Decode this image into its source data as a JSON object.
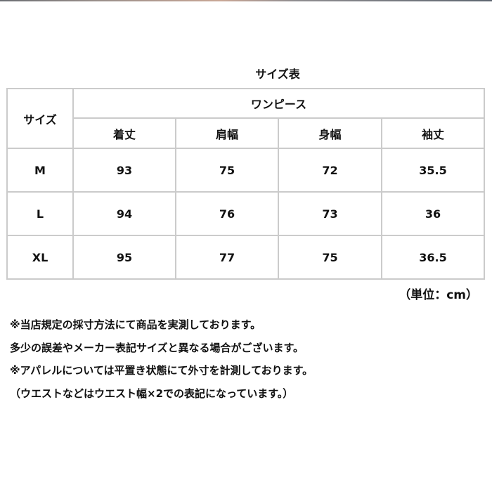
{
  "title": "サイズ表",
  "table": {
    "size_header": "サイズ",
    "group_header": "ワンピース",
    "columns": [
      "着丈",
      "肩幅",
      "身幅",
      "袖丈"
    ],
    "rows": [
      {
        "size": "M",
        "values": [
          "93",
          "75",
          "72",
          "35.5"
        ]
      },
      {
        "size": "L",
        "values": [
          "94",
          "76",
          "73",
          "36"
        ]
      },
      {
        "size": "XL",
        "values": [
          "95",
          "77",
          "75",
          "36.5"
        ]
      }
    ]
  },
  "unit": "（単位：cm）",
  "notes": [
    "※当店規定の採寸方法にて商品を実測しております。",
    "多少の誤差やメーカー表記サイズと異なる場合がございます。",
    "※アパレルについては平置き状態にて外寸を計測しております。",
    "（ウエストなどはウエスト幅×2での表記になっています。）"
  ],
  "colors": {
    "border": "#cbcbcb",
    "text": "#111111"
  }
}
